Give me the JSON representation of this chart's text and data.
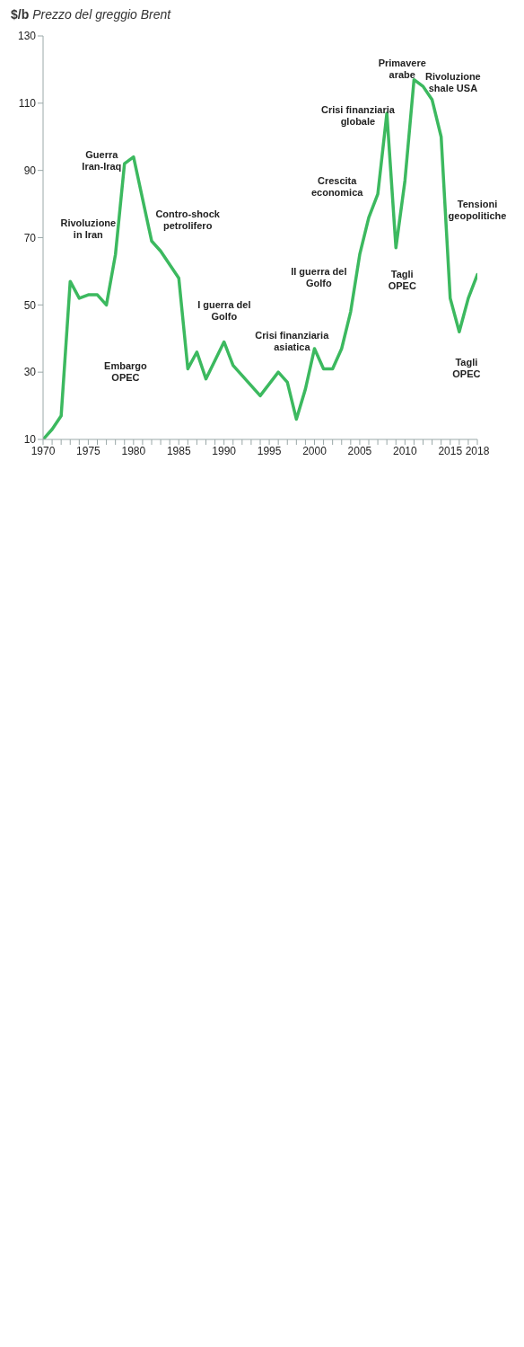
{
  "chart_data": {
    "type": "line",
    "title": "Prezzo del greggio Brent",
    "ylabel": "$/b",
    "x": [
      1970,
      1971,
      1972,
      1973,
      1974,
      1975,
      1976,
      1977,
      1978,
      1979,
      1980,
      1982,
      1983,
      1984,
      1985,
      1986,
      1987,
      1988,
      1990,
      1991,
      1994,
      1996,
      1997,
      1998,
      1999,
      2000,
      2001,
      2002,
      2003,
      2004,
      2005,
      2006,
      2007,
      2008,
      2009,
      2010,
      2011,
      2012,
      2013,
      2014,
      2015,
      2016,
      2017,
      2018
    ],
    "series": [
      {
        "color": "#3cb95f",
        "values": [
          10,
          13,
          17,
          57,
          52,
          53,
          53,
          50,
          65,
          92,
          94,
          69,
          66,
          62,
          58,
          31,
          36,
          28,
          39,
          32,
          23,
          30,
          27,
          16,
          25,
          37,
          31,
          31,
          37,
          48,
          65,
          76,
          83,
          107,
          67,
          87,
          117,
          115,
          111,
          100,
          52,
          42,
          52,
          59
        ]
      }
    ],
    "xlim": [
      1970,
      2018
    ],
    "xticks": [
      1970,
      {
        "value": 1971,
        "label": null
      },
      {
        "value": 1972,
        "label": null
      },
      {
        "value": 1973,
        "label": null
      },
      {
        "value": 1974,
        "label": null
      },
      1975,
      {
        "value": 1976,
        "label": null
      },
      {
        "value": 1977,
        "label": null
      },
      {
        "value": 1978,
        "label": null
      },
      {
        "value": 1979,
        "label": null
      },
      1980,
      {
        "value": 1981,
        "label": null
      },
      {
        "value": 1982,
        "label": null
      },
      {
        "value": 1983,
        "label": null
      },
      {
        "value": 1984,
        "label": null
      },
      1985,
      {
        "value": 1986,
        "label": null
      },
      {
        "value": 1987,
        "label": null
      },
      {
        "value": 1988,
        "label": null
      },
      {
        "value": 1989,
        "label": null
      },
      1990,
      {
        "value": 1991,
        "label": null
      },
      {
        "value": 1992,
        "label": null
      },
      {
        "value": 1993,
        "label": null
      },
      {
        "value": 1994,
        "label": null
      },
      1995,
      {
        "value": 1996,
        "label": null
      },
      {
        "value": 1997,
        "label": null
      },
      {
        "value": 1998,
        "label": null
      },
      {
        "value": 1999,
        "label": null
      },
      2000,
      {
        "value": 2001,
        "label": null
      },
      {
        "value": 2002,
        "label": null
      },
      {
        "value": 2003,
        "label": null
      },
      {
        "value": 2004,
        "label": null
      },
      2005,
      {
        "value": 2006,
        "label": null
      },
      {
        "value": 2007,
        "label": null
      },
      {
        "value": 2008,
        "label": null
      },
      {
        "value": 2009,
        "label": null
      },
      2010,
      {
        "value": 2011,
        "label": null
      },
      {
        "value": 2012,
        "label": null
      },
      {
        "value": 2013,
        "label": null
      },
      {
        "value": 2014,
        "label": null
      },
      2015,
      {
        "value": 2016,
        "label": null
      },
      {
        "value": 2017,
        "label": null
      },
      2018
    ],
    "ylim": [
      10,
      130
    ],
    "yticks": [
      10,
      30,
      50,
      70,
      90,
      110,
      130
    ],
    "annotations": [
      "Embargo\nOPEC",
      "Rivoluzione\nin Iran",
      "Guerra\nIran-Iraq",
      "Contro-shock\npetrolifero",
      "I guerra del\nGolfo",
      "Crisi finanziaria\nasiatica",
      "II guerra del\nGolfo",
      "Crescita\neconomica",
      "Crisi finanziaria\nglobale",
      "Primavere\narabe",
      "Tagli\nOPEC",
      "Rivoluzione\nshale USA",
      "Tagli\nOPEC",
      "Tensioni\ngeopolitiche"
    ]
  }
}
